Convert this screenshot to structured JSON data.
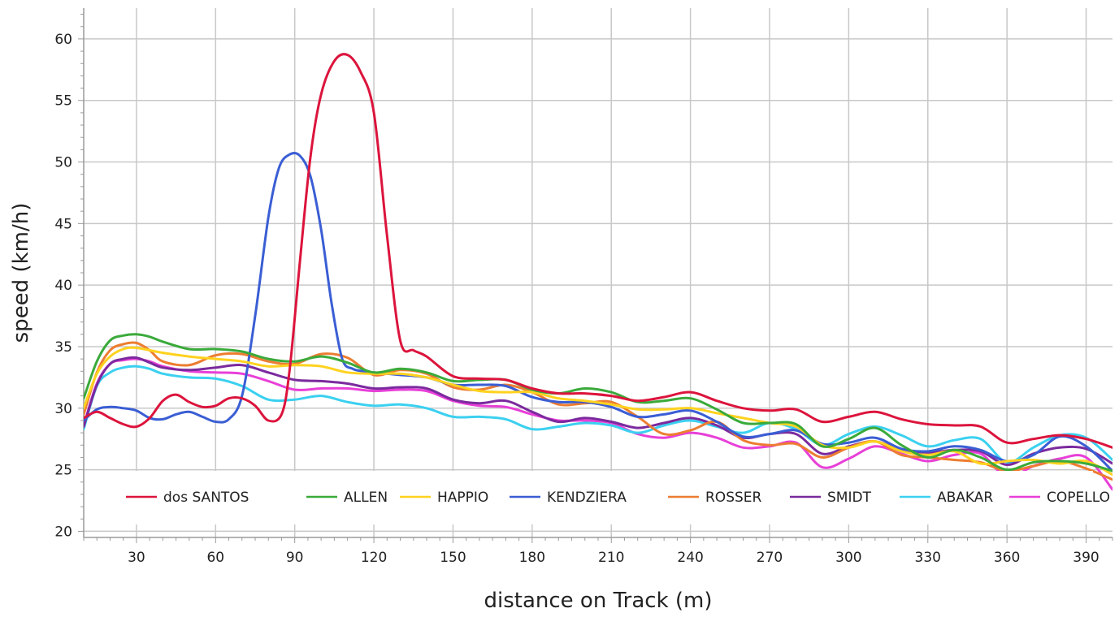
{
  "chart_data": {
    "type": "line",
    "xlabel": "distance on Track (m)",
    "ylabel": "speed (km/h)",
    "xlim": [
      10,
      400
    ],
    "ylim": [
      19.5,
      62.5
    ],
    "x_ticks": [
      30,
      60,
      90,
      120,
      150,
      180,
      210,
      240,
      270,
      300,
      330,
      360,
      390
    ],
    "y_ticks": [
      20,
      25,
      30,
      35,
      40,
      45,
      50,
      55,
      60
    ],
    "grid": true,
    "legend_position": "bottom-inside",
    "series": [
      {
        "name": "dos SANTOS",
        "color": "#dc143c",
        "x": [
          10,
          15,
          20,
          25,
          30,
          35,
          40,
          45,
          50,
          55,
          60,
          65,
          70,
          75,
          80,
          85,
          88,
          92,
          96,
          100,
          105,
          110,
          115,
          120,
          125,
          130,
          135,
          140,
          150,
          160,
          170,
          180,
          190,
          200,
          210,
          220,
          230,
          240,
          250,
          260,
          270,
          280,
          290,
          300,
          310,
          320,
          330,
          340,
          350,
          360,
          370,
          380,
          390,
          400
        ],
        "y": [
          29.2,
          29.7,
          29.2,
          28.7,
          28.5,
          29.2,
          30.6,
          31.1,
          30.5,
          30.1,
          30.2,
          30.8,
          30.8,
          30.2,
          29.0,
          29.5,
          33,
          42,
          50.5,
          55.5,
          58.2,
          58.7,
          57.3,
          54,
          44,
          35.5,
          34.7,
          34.2,
          32.6,
          32.4,
          32.3,
          31.6,
          31.2,
          31.2,
          31.0,
          30.6,
          30.9,
          31.3,
          30.6,
          30.0,
          29.8,
          29.9,
          28.9,
          29.3,
          29.7,
          29.1,
          28.7,
          28.6,
          28.5,
          27.2,
          27.5,
          27.8,
          27.5,
          26.8
        ]
      },
      {
        "name": "ALLEN",
        "color": "#3aaa3a",
        "x": [
          10,
          15,
          20,
          25,
          30,
          35,
          40,
          50,
          60,
          70,
          80,
          90,
          100,
          110,
          120,
          130,
          140,
          150,
          160,
          170,
          180,
          190,
          200,
          210,
          220,
          230,
          240,
          250,
          260,
          270,
          280,
          290,
          300,
          310,
          320,
          330,
          340,
          350,
          360,
          370,
          380,
          390,
          400
        ],
        "y": [
          30.8,
          33.8,
          35.5,
          35.9,
          36.0,
          35.8,
          35.4,
          34.8,
          34.8,
          34.6,
          34.0,
          33.8,
          34.2,
          33.7,
          32.9,
          33.2,
          32.9,
          32.2,
          32.3,
          32.3,
          31.5,
          31.2,
          31.6,
          31.3,
          30.5,
          30.6,
          30.8,
          29.9,
          28.8,
          28.8,
          28.7,
          26.9,
          27.5,
          28.4,
          27.0,
          26.0,
          26.6,
          26.0,
          25.0,
          25.6,
          25.7,
          25.5,
          24.9
        ]
      },
      {
        "name": "HAPPIO",
        "color": "#ffd21f",
        "x": [
          10,
          15,
          20,
          25,
          30,
          40,
          50,
          60,
          70,
          80,
          90,
          100,
          110,
          120,
          130,
          140,
          150,
          160,
          170,
          180,
          190,
          200,
          210,
          220,
          230,
          240,
          250,
          260,
          270,
          280,
          290,
          300,
          310,
          320,
          330,
          340,
          350,
          360,
          370,
          380,
          390,
          400
        ],
        "y": [
          30.0,
          32.8,
          34.2,
          34.8,
          34.9,
          34.5,
          34.2,
          34.0,
          33.8,
          33.4,
          33.5,
          33.4,
          32.9,
          32.8,
          32.8,
          32.5,
          31.9,
          31.4,
          31.3,
          31.3,
          30.8,
          30.6,
          30.3,
          29.9,
          29.9,
          30.0,
          29.6,
          29.2,
          28.8,
          28.5,
          27.0,
          26.8,
          27.3,
          26.5,
          26.2,
          26.5,
          25.5,
          25.7,
          25.8,
          25.5,
          25.7,
          24.6
        ]
      },
      {
        "name": "KENDZIERA",
        "color": "#3a5ed4",
        "x": [
          10,
          15,
          20,
          25,
          30,
          35,
          40,
          45,
          50,
          55,
          60,
          65,
          70,
          75,
          80,
          84,
          88,
          92,
          96,
          100,
          104,
          108,
          112,
          116,
          120,
          125,
          130,
          140,
          150,
          160,
          170,
          180,
          190,
          200,
          210,
          220,
          230,
          240,
          250,
          260,
          270,
          280,
          290,
          300,
          310,
          320,
          330,
          340,
          350,
          360,
          370,
          380,
          390,
          400
        ],
        "y": [
          29.0,
          29.9,
          30.1,
          30.0,
          29.8,
          29.2,
          29.1,
          29.5,
          29.7,
          29.3,
          28.9,
          29.1,
          31.0,
          37.5,
          45.5,
          49.5,
          50.6,
          50.5,
          48.8,
          44.5,
          38.5,
          34.0,
          33.2,
          33.0,
          32.9,
          32.8,
          32.7,
          32.5,
          31.9,
          31.9,
          31.8,
          30.9,
          30.5,
          30.5,
          30.1,
          29.3,
          29.5,
          29.8,
          28.9,
          27.7,
          27.9,
          28.2,
          27.1,
          27.2,
          27.6,
          26.7,
          26.5,
          26.9,
          26.6,
          25.7,
          26.2,
          27.7,
          26.9,
          24.9
        ]
      },
      {
        "name": "ROSSER",
        "color": "#ed7d31",
        "x": [
          10,
          15,
          20,
          25,
          30,
          35,
          40,
          50,
          60,
          70,
          80,
          90,
          100,
          110,
          120,
          130,
          140,
          150,
          160,
          170,
          180,
          190,
          200,
          210,
          220,
          230,
          240,
          250,
          260,
          270,
          280,
          290,
          300,
          310,
          320,
          330,
          340,
          350,
          360,
          370,
          380,
          390,
          400
        ],
        "y": [
          29.5,
          32.9,
          34.7,
          35.2,
          35.3,
          34.7,
          33.8,
          33.5,
          34.3,
          34.4,
          33.8,
          33.6,
          34.4,
          34.1,
          32.7,
          33.1,
          32.8,
          31.7,
          31.5,
          31.9,
          31.3,
          30.3,
          30.4,
          30.5,
          29.3,
          27.9,
          28.2,
          28.9,
          27.4,
          27.0,
          27.1,
          26.0,
          26.8,
          27.3,
          26.2,
          26.0,
          25.8,
          25.6,
          24.9,
          25.3,
          25.7,
          25.1,
          24.2
        ]
      },
      {
        "name": "SMIDT",
        "color": "#7b2a9e",
        "x": [
          10,
          15,
          20,
          25,
          30,
          35,
          40,
          50,
          60,
          70,
          80,
          90,
          100,
          110,
          120,
          130,
          140,
          150,
          160,
          170,
          180,
          190,
          200,
          210,
          220,
          230,
          240,
          250,
          260,
          270,
          280,
          290,
          300,
          310,
          320,
          330,
          340,
          350,
          360,
          370,
          380,
          390,
          400
        ],
        "y": [
          28.5,
          31.9,
          33.6,
          34.0,
          34.1,
          33.7,
          33.3,
          33.1,
          33.3,
          33.5,
          32.9,
          32.3,
          32.2,
          32.0,
          31.6,
          31.7,
          31.6,
          30.7,
          30.4,
          30.6,
          29.7,
          28.9,
          29.2,
          28.9,
          28.4,
          28.8,
          29.2,
          28.6,
          27.6,
          27.9,
          27.9,
          26.3,
          26.9,
          27.3,
          26.6,
          26.4,
          26.6,
          26.5,
          25.4,
          26.3,
          26.8,
          26.7,
          25.5
        ]
      },
      {
        "name": "ABAKAR",
        "color": "#3bd0f0",
        "x": [
          10,
          15,
          20,
          25,
          30,
          35,
          40,
          50,
          60,
          70,
          80,
          90,
          100,
          110,
          120,
          130,
          140,
          150,
          160,
          170,
          180,
          190,
          200,
          210,
          220,
          230,
          240,
          250,
          260,
          270,
          280,
          290,
          300,
          310,
          320,
          330,
          340,
          350,
          360,
          370,
          380,
          390,
          400
        ],
        "y": [
          28.3,
          31.8,
          32.9,
          33.3,
          33.4,
          33.2,
          32.8,
          32.5,
          32.4,
          31.8,
          30.7,
          30.7,
          31.0,
          30.5,
          30.2,
          30.3,
          30.0,
          29.3,
          29.3,
          29.1,
          28.3,
          28.5,
          28.8,
          28.6,
          28.0,
          28.6,
          29.0,
          28.5,
          28.0,
          28.8,
          28.3,
          27.0,
          27.9,
          28.5,
          27.8,
          26.9,
          27.4,
          27.5,
          25.6,
          26.8,
          27.8,
          27.6,
          25.8
        ]
      },
      {
        "name": "COPELLO",
        "color": "#e83fd8",
        "x": [
          10,
          15,
          20,
          25,
          30,
          35,
          40,
          50,
          60,
          70,
          80,
          90,
          100,
          110,
          120,
          130,
          140,
          150,
          160,
          170,
          180,
          190,
          200,
          210,
          220,
          230,
          240,
          250,
          260,
          270,
          280,
          290,
          300,
          310,
          320,
          330,
          340,
          350,
          360,
          370,
          380,
          390,
          400
        ],
        "y": [
          28.6,
          32.0,
          33.6,
          33.9,
          34.0,
          33.8,
          33.4,
          33.0,
          32.9,
          32.8,
          32.2,
          31.5,
          31.6,
          31.6,
          31.4,
          31.5,
          31.4,
          30.6,
          30.2,
          30.1,
          29.5,
          29.0,
          29.0,
          28.8,
          27.9,
          27.6,
          28.0,
          27.6,
          26.8,
          26.9,
          27.2,
          25.2,
          25.9,
          26.9,
          26.3,
          25.7,
          26.2,
          26.3,
          24.4,
          25.3,
          25.9,
          26.0,
          23.4
        ]
      }
    ]
  }
}
